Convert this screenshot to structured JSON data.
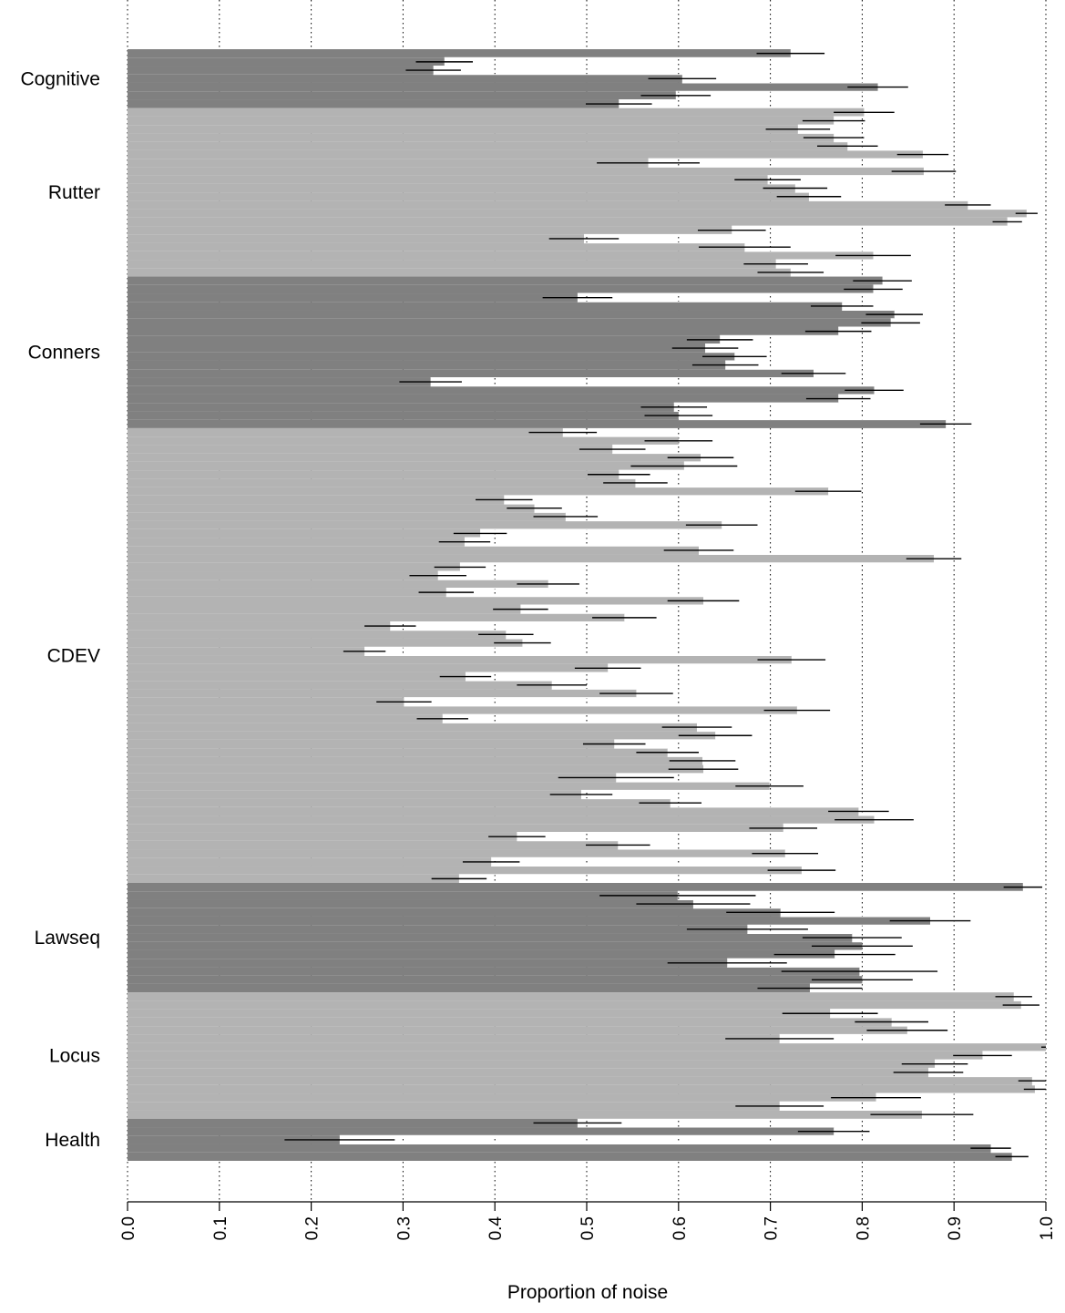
{
  "chart_data": {
    "type": "bar",
    "orientation": "horizontal",
    "xlabel": "Proportion of noise",
    "xlim": [
      0,
      1
    ],
    "xticks": [
      "0.0",
      "0.1",
      "0.2",
      "0.3",
      "0.4",
      "0.5",
      "0.6",
      "0.7",
      "0.8",
      "0.9",
      "1.0"
    ],
    "grid": "vertical dotted",
    "colors": {
      "dark": "#808080",
      "light": "#b3b3b3",
      "error": "#000000",
      "grid": "#000000"
    },
    "groups": [
      {
        "name": "Cognitive",
        "shade": "dark",
        "values": [
          0.722,
          0.345,
          0.333,
          0.604,
          0.817,
          0.597,
          0.535
        ],
        "errors": [
          0.037,
          0.031,
          0.03,
          0.037,
          0.033,
          0.038,
          0.036
        ]
      },
      {
        "name": "Rutter",
        "shade": "light",
        "values": [
          0.802,
          0.769,
          0.73,
          0.769,
          0.784,
          0.866,
          0.567,
          0.867,
          0.697,
          0.727,
          0.742,
          0.915,
          0.979,
          0.958,
          0.658,
          0.497,
          0.672,
          0.812,
          0.706,
          0.722
        ],
        "errors": [
          0.033,
          0.034,
          0.035,
          0.033,
          0.033,
          0.028,
          0.056,
          0.035,
          0.036,
          0.035,
          0.035,
          0.025,
          0.012,
          0.016,
          0.037,
          0.038,
          0.05,
          0.041,
          0.035,
          0.036
        ]
      },
      {
        "name": "Conners",
        "shade": "dark",
        "values": [
          0.822,
          0.812,
          0.49,
          0.778,
          0.835,
          0.831,
          0.774,
          0.645,
          0.629,
          0.661,
          0.651,
          0.747,
          0.33,
          0.813,
          0.774,
          0.595,
          0.6,
          0.891
        ],
        "errors": [
          0.032,
          0.032,
          0.038,
          0.034,
          0.031,
          0.032,
          0.036,
          0.036,
          0.036,
          0.035,
          0.036,
          0.035,
          0.034,
          0.032,
          0.035,
          0.036,
          0.037,
          0.028
        ]
      },
      {
        "name": "CDEV",
        "shade": "light",
        "values": [
          0.474,
          0.6,
          0.528,
          0.624,
          0.606,
          0.535,
          0.553,
          0.763,
          0.41,
          0.443,
          0.477,
          0.647,
          0.384,
          0.367,
          0.622,
          0.878,
          0.362,
          0.338,
          0.458,
          0.347,
          0.627,
          0.428,
          0.541,
          0.286,
          0.412,
          0.43,
          0.258,
          0.723,
          0.523,
          0.368,
          0.462,
          0.554,
          0.301,
          0.729,
          0.343,
          0.62,
          0.64,
          0.53,
          0.588,
          0.626,
          0.627,
          0.532,
          0.699,
          0.494,
          0.591,
          0.796,
          0.813,
          0.714,
          0.424,
          0.534,
          0.716,
          0.396,
          0.734,
          0.361
        ],
        "errors": [
          0.037,
          0.037,
          0.036,
          0.036,
          0.058,
          0.034,
          0.035,
          0.036,
          0.031,
          0.03,
          0.035,
          0.039,
          0.029,
          0.028,
          0.038,
          0.03,
          0.028,
          0.031,
          0.034,
          0.03,
          0.039,
          0.03,
          0.035,
          0.028,
          0.03,
          0.031,
          0.023,
          0.037,
          0.036,
          0.028,
          0.038,
          0.04,
          0.03,
          0.036,
          0.028,
          0.038,
          0.04,
          0.034,
          0.034,
          0.036,
          0.038,
          0.063,
          0.037,
          0.034,
          0.034,
          0.033,
          0.043,
          0.037,
          0.031,
          0.035,
          0.036,
          0.031,
          0.037,
          0.03
        ]
      },
      {
        "name": "Lawseq",
        "shade": "dark",
        "values": [
          0.975,
          0.599,
          0.616,
          0.711,
          0.874,
          0.675,
          0.789,
          0.8,
          0.77,
          0.653,
          0.797,
          0.8,
          0.743
        ],
        "errors": [
          0.021,
          0.085,
          0.062,
          0.059,
          0.044,
          0.066,
          0.054,
          0.055,
          0.066,
          0.065,
          0.085,
          0.055,
          0.057
        ]
      },
      {
        "name": "Locus",
        "shade": "light",
        "values": [
          0.965,
          0.973,
          0.765,
          0.832,
          0.849,
          0.71,
          1.0,
          0.931,
          0.879,
          0.872,
          0.985,
          0.988,
          0.815,
          0.71,
          0.865
        ],
        "errors": [
          0.02,
          0.02,
          0.052,
          0.04,
          0.044,
          0.059,
          0.005,
          0.032,
          0.036,
          0.038,
          0.015,
          0.012,
          0.049,
          0.048,
          0.056
        ]
      },
      {
        "name": "Health",
        "shade": "dark",
        "values": [
          0.49,
          0.769,
          0.231,
          0.94,
          0.963
        ],
        "errors": [
          0.048,
          0.039,
          0.06,
          0.022,
          0.018
        ]
      }
    ]
  }
}
